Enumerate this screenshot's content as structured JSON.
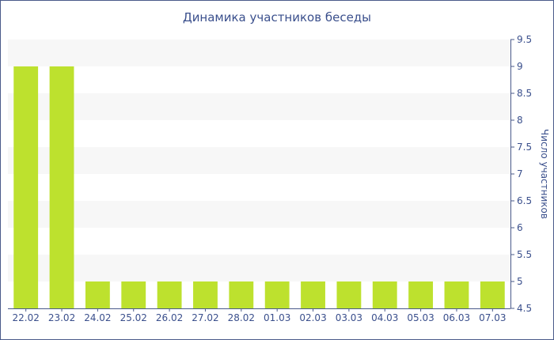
{
  "chart_data": {
    "type": "bar",
    "title": "Динамика участников беседы",
    "xlabel": "",
    "ylabel": "Число участников",
    "categories": [
      "22.02",
      "23.02",
      "24.02",
      "25.02",
      "26.02",
      "27.02",
      "28.02",
      "01.03",
      "02.03",
      "03.03",
      "04.03",
      "05.03",
      "06.03",
      "07.03"
    ],
    "values": [
      9,
      9,
      5,
      5,
      5,
      5,
      5,
      5,
      5,
      5,
      5,
      5,
      5,
      5
    ],
    "ylim": [
      4.5,
      9.5
    ],
    "yticks": [
      "4.5",
      "5",
      "5.5",
      "6",
      "6.5",
      "7",
      "7.5",
      "8",
      "8.5",
      "9",
      "9.5"
    ],
    "y_axis_position": "right",
    "grid": "alternating horizontal bands",
    "legend": "none",
    "colors": {
      "bar": "#bde12e",
      "band": "#f7f7f7",
      "text": "#3a4f8c",
      "axis": "#4a5a8a"
    }
  }
}
